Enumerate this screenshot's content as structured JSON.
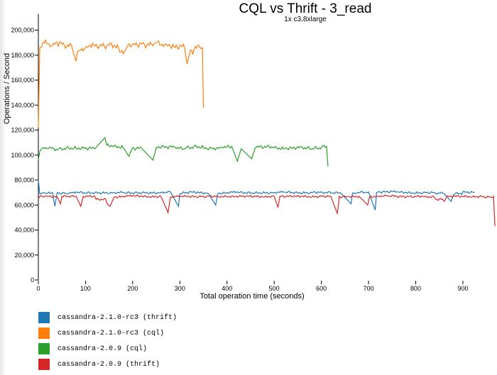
{
  "chart_data": {
    "type": "line",
    "title": "CQL vs Thrift - 3_read",
    "subtitle": "1x c3.8xlarge",
    "xlabel": "Total operation time (seconds)",
    "ylabel": "Operations / Second",
    "xlim": [
      0,
      975
    ],
    "ylim": [
      0,
      213000
    ],
    "xticks": [
      0,
      100,
      200,
      300,
      400,
      500,
      600,
      700,
      800,
      900
    ],
    "yticks": [
      0,
      20000,
      40000,
      60000,
      80000,
      100000,
      120000,
      140000,
      160000,
      180000,
      200000
    ],
    "xtick_labels": [
      "0",
      "100",
      "200",
      "300",
      "400",
      "500",
      "600",
      "700",
      "800",
      "900"
    ],
    "ytick_labels": [
      "0",
      "20,000",
      "40,000",
      "60,000",
      "80,000",
      "100,000",
      "120,000",
      "140,000",
      "160,000",
      "180,000",
      "200,000"
    ],
    "legend_position": "bottom-left",
    "series": [
      {
        "name": "cassandra-2.1.0-rc3 (thrift)",
        "color": "#1f77b4",
        "x": [
          0,
          3,
          10,
          20,
          30,
          35,
          40,
          60,
          80,
          100,
          120,
          140,
          160,
          180,
          200,
          220,
          240,
          260,
          280,
          297,
          300,
          320,
          340,
          360,
          376,
          380,
          400,
          420,
          440,
          460,
          480,
          500,
          520,
          540,
          560,
          580,
          600,
          620,
          640,
          663,
          666,
          680,
          700,
          714,
          717,
          740,
          760,
          780,
          800,
          820,
          840,
          860,
          875,
          880,
          900,
          925
        ],
        "y": [
          80000,
          69000,
          70000,
          69500,
          70000,
          59000,
          70000,
          69000,
          70500,
          69500,
          70000,
          69500,
          70000,
          70000,
          69500,
          70000,
          69500,
          70000,
          70500,
          59000,
          69000,
          70500,
          70000,
          69500,
          60000,
          69000,
          70000,
          70500,
          69500,
          70000,
          69500,
          70000,
          70500,
          70000,
          69500,
          70000,
          70500,
          69500,
          70000,
          61000,
          69500,
          70000,
          70500,
          56000,
          70000,
          71000,
          70500,
          70000,
          69500,
          70000,
          70000,
          69000,
          63000,
          68000,
          70500,
          70000
        ]
      },
      {
        "name": "cassandra-2.1.0-rc3 (cql)",
        "color": "#ff7f0e",
        "x": [
          0,
          3,
          10,
          20,
          30,
          40,
          50,
          60,
          70,
          80,
          83,
          90,
          100,
          110,
          120,
          130,
          140,
          150,
          160,
          170,
          180,
          190,
          200,
          210,
          220,
          230,
          240,
          250,
          260,
          270,
          280,
          290,
          300,
          310,
          315,
          320,
          330,
          340,
          348,
          350
        ],
        "y": [
          122000,
          186000,
          190000,
          189000,
          188000,
          190000,
          189000,
          187000,
          188000,
          175000,
          183000,
          184000,
          186000,
          188000,
          187000,
          188000,
          187000,
          188000,
          188000,
          186000,
          181000,
          188000,
          189000,
          188000,
          189000,
          188000,
          189000,
          190000,
          188000,
          189000,
          187000,
          186000,
          188000,
          186000,
          173000,
          180000,
          185000,
          188000,
          186000,
          138000
        ]
      },
      {
        "name": "cassandra-2.0.9 (cql)",
        "color": "#2ca02c",
        "x": [
          0,
          3,
          10,
          20,
          30,
          40,
          60,
          80,
          100,
          120,
          141,
          145,
          160,
          180,
          192,
          200,
          220,
          243,
          250,
          270,
          290,
          310,
          330,
          350,
          370,
          390,
          410,
          422,
          430,
          452,
          460,
          480,
          500,
          520,
          540,
          560,
          580,
          600,
          611,
          614
        ],
        "y": [
          96000,
          103000,
          106000,
          105000,
          106000,
          104000,
          106000,
          105000,
          106000,
          105000,
          114000,
          108000,
          107000,
          106000,
          99000,
          106000,
          105000,
          96000,
          106000,
          107000,
          106000,
          105000,
          107000,
          106000,
          105000,
          106000,
          107000,
          95000,
          105000,
          97000,
          106000,
          107000,
          106000,
          105000,
          106000,
          106000,
          105000,
          106000,
          107000,
          91000
        ]
      },
      {
        "name": "cassandra-2.0.9 (thrift)",
        "color": "#d62728",
        "x": [
          0,
          3,
          20,
          40,
          47,
          50,
          80,
          90,
          95,
          120,
          145,
          152,
          160,
          180,
          200,
          220,
          240,
          260,
          275,
          280,
          300,
          320,
          340,
          360,
          380,
          400,
          420,
          440,
          460,
          480,
          500,
          508,
          512,
          540,
          560,
          580,
          600,
          620,
          634,
          638,
          660,
          680,
          698,
          702,
          720,
          740,
          760,
          780,
          800,
          820,
          840,
          860,
          865,
          880,
          900,
          920,
          940,
          960,
          965,
          968
        ],
        "y": [
          65000,
          67000,
          67000,
          66500,
          61000,
          67000,
          67000,
          59000,
          67000,
          67000,
          62000,
          59000,
          66000,
          67000,
          67500,
          67000,
          66500,
          67000,
          54000,
          66500,
          67000,
          67000,
          66500,
          67000,
          67000,
          66500,
          67000,
          67000,
          67000,
          66500,
          67000,
          58000,
          67000,
          67000,
          67000,
          66500,
          67000,
          67000,
          53000,
          67000,
          66500,
          67000,
          60000,
          66500,
          67000,
          67500,
          67000,
          66500,
          67000,
          67000,
          66000,
          63000,
          66500,
          67000,
          67000,
          66500,
          67000,
          66000,
          67000,
          43000
        ]
      }
    ]
  }
}
